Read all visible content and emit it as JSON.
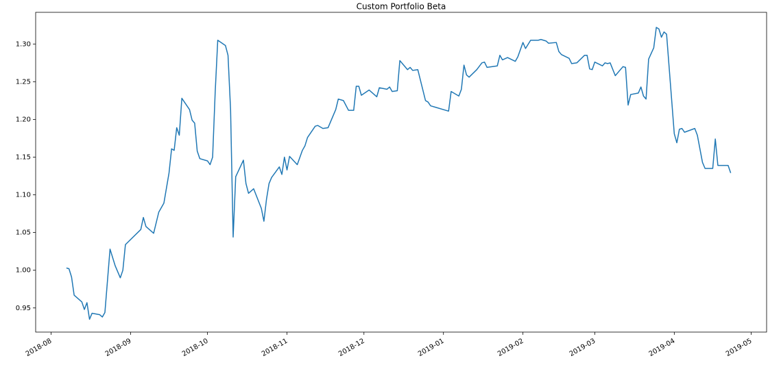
{
  "chart_data": {
    "type": "line",
    "title": "Custom Portfolio Beta",
    "color": "#1f77b4",
    "xlim": [
      17738,
      18023
    ],
    "xticks": [
      {
        "value": 17744,
        "label": "2018-08"
      },
      {
        "value": 17775,
        "label": "2018-09"
      },
      {
        "value": 17805,
        "label": "2018-10"
      },
      {
        "value": 17836,
        "label": "2018-11"
      },
      {
        "value": 17866,
        "label": "2018-12"
      },
      {
        "value": 17897,
        "label": "2019-01"
      },
      {
        "value": 17928,
        "label": "2019-02"
      },
      {
        "value": 17956,
        "label": "2019-03"
      },
      {
        "value": 17987,
        "label": "2019-04"
      },
      {
        "value": 18017,
        "label": "2019-05"
      }
    ],
    "ylim": [
      0.918,
      1.342
    ],
    "yticks": [
      0.95,
      {
        "value": 1,
        "label": "1.00"
      },
      1.05,
      {
        "value": 1.1,
        "label": "1.10"
      },
      1.15,
      {
        "value": 1.2,
        "label": "1.20"
      },
      1.25,
      {
        "value": 1.3,
        "label": "1.30"
      }
    ],
    "x": [
      17750,
      17751,
      17752,
      17753,
      17756,
      17757,
      17758,
      17759,
      17760,
      17763,
      17764,
      17765,
      17766,
      17767,
      17769,
      17771,
      17772,
      17773,
      17779,
      17780,
      17781,
      17784,
      17786,
      17788,
      17790,
      17791,
      17792,
      17793,
      17794,
      17795,
      17798,
      17799,
      17800,
      17801,
      17802,
      17805,
      17806,
      17807,
      17808,
      17809,
      17812,
      17813,
      17814,
      17815,
      17816,
      17819,
      17820,
      17821,
      17823,
      17826,
      17827,
      17828,
      17829,
      17830,
      17833,
      17834,
      17835,
      17836,
      17837,
      17840,
      17842,
      17843,
      17844,
      17847,
      17848,
      17850,
      17852,
      17855,
      17856,
      17858,
      17860,
      17862,
      17863,
      17864,
      17865,
      17868,
      17871,
      17872,
      17875,
      17876,
      17877,
      17879,
      17880,
      17883,
      17884,
      17885,
      17887,
      17890,
      17891,
      17892,
      17894,
      17899,
      17900,
      17903,
      17904,
      17905,
      17906,
      17907,
      17910,
      17912,
      17913,
      17914,
      17918,
      17919,
      17920,
      17922,
      17925,
      17926,
      17928,
      17929,
      17931,
      17934,
      17935,
      17937,
      17938,
      17941,
      17942,
      17943,
      17946,
      17947,
      17949,
      17952,
      17953,
      17954,
      17955,
      17956,
      17959,
      17960,
      17961,
      17962,
      17964,
      17967,
      17968,
      17969,
      17970,
      17973,
      17974,
      17975,
      17976,
      17977,
      17979,
      17980,
      17981,
      17982,
      17983,
      17984,
      17987,
      17988,
      17989,
      17990,
      17991,
      17995,
      17996,
      17998,
      17999,
      18002,
      18003,
      18004,
      18007,
      18008,
      18009
    ],
    "values": [
      1.003,
      1.002,
      0.991,
      0.967,
      0.958,
      0.948,
      0.957,
      0.935,
      0.943,
      0.941,
      0.938,
      0.944,
      0.986,
      1.028,
      1.006,
      0.99,
      1.0,
      1.034,
      1.054,
      1.07,
      1.058,
      1.049,
      1.077,
      1.089,
      1.129,
      1.161,
      1.159,
      1.189,
      1.179,
      1.228,
      1.213,
      1.199,
      1.195,
      1.158,
      1.148,
      1.145,
      1.14,
      1.15,
      1.236,
      1.305,
      1.298,
      1.285,
      1.213,
      1.044,
      1.124,
      1.146,
      1.115,
      1.102,
      1.108,
      1.082,
      1.065,
      1.094,
      1.115,
      1.123,
      1.137,
      1.127,
      1.15,
      1.133,
      1.151,
      1.14,
      1.159,
      1.165,
      1.176,
      1.191,
      1.192,
      1.188,
      1.189,
      1.213,
      1.227,
      1.225,
      1.212,
      1.212,
      1.244,
      1.244,
      1.232,
      1.239,
      1.23,
      1.242,
      1.24,
      1.243,
      1.237,
      1.238,
      1.278,
      1.266,
      1.269,
      1.265,
      1.266,
      1.225,
      1.223,
      1.218,
      1.216,
      1.211,
      1.237,
      1.231,
      1.24,
      1.272,
      1.259,
      1.256,
      1.266,
      1.275,
      1.276,
      1.269,
      1.271,
      1.285,
      1.279,
      1.282,
      1.277,
      1.283,
      1.302,
      1.294,
      1.305,
      1.305,
      1.306,
      1.304,
      1.301,
      1.302,
      1.29,
      1.286,
      1.281,
      1.274,
      1.275,
      1.285,
      1.285,
      1.267,
      1.266,
      1.276,
      1.271,
      1.275,
      1.274,
      1.275,
      1.258,
      1.27,
      1.269,
      1.219,
      1.233,
      1.235,
      1.243,
      1.231,
      1.227,
      1.28,
      1.295,
      1.322,
      1.32,
      1.309,
      1.316,
      1.313,
      1.181,
      1.169,
      1.187,
      1.188,
      1.183,
      1.188,
      1.179,
      1.143,
      1.135,
      1.135,
      1.174,
      1.139,
      1.139,
      1.139,
      1.129
    ]
  }
}
